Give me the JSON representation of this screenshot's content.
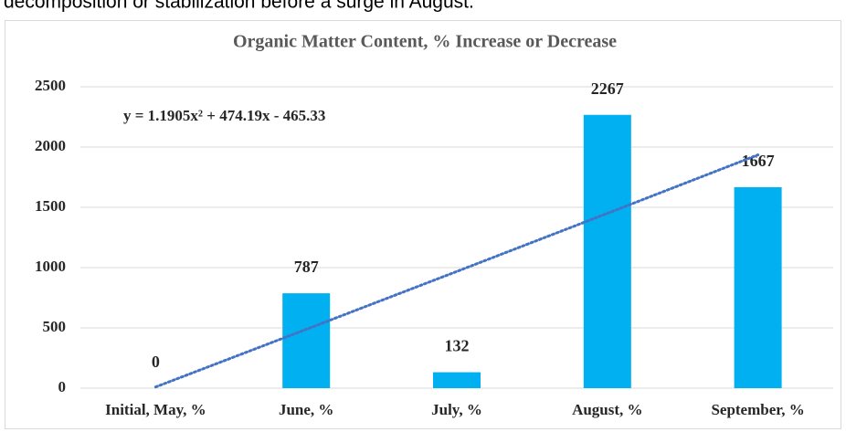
{
  "intro_text": "decomposition or stabilization before a surge in August.",
  "chart_data": {
    "type": "bar",
    "title": "Organic Matter Content, % Increase or Decrease",
    "categories": [
      "Initial, May, %",
      "June, %",
      "July, %",
      "August, %",
      "September, %"
    ],
    "values": [
      0,
      787,
      132,
      2267,
      1667
    ],
    "color": "#00b0f0",
    "ylim": [
      0,
      2500
    ],
    "yticks": [
      0,
      500,
      1000,
      1500,
      2000,
      2500
    ],
    "grid": true,
    "trendline": {
      "type": "polynomial",
      "label": "y = 1.1905x² + 474.19x - 465.33",
      "color": "#4472c4",
      "values": [
        10,
        488,
        968,
        1450,
        1935
      ]
    }
  }
}
